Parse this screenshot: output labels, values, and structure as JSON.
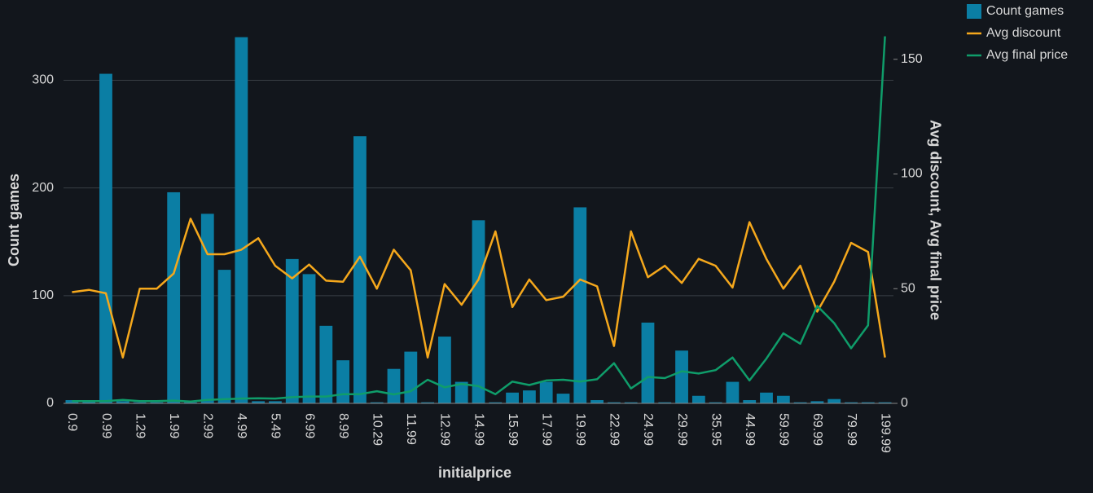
{
  "chart_data": {
    "type": "bar-line",
    "x_label": "initialprice",
    "y_label": "Count games",
    "y2_label": "Avg discount, Avg final price",
    "categories": [
      "0.9",
      null,
      "0.99",
      null,
      "1.29",
      null,
      "1.99",
      null,
      "2.99",
      null,
      "4.99",
      null,
      "5.49",
      null,
      "6.99",
      null,
      "8.99",
      null,
      "10.29",
      null,
      "11.99",
      null,
      "12.99",
      null,
      "14.99",
      null,
      "15.99",
      null,
      "17.99",
      null,
      "19.99",
      null,
      "22.99",
      null,
      "24.99",
      null,
      "29.99",
      null,
      "35.95",
      null,
      "44.99",
      null,
      "59.99",
      null,
      "69.99",
      null,
      "79.99",
      null,
      "199.99"
    ],
    "series": [
      {
        "name": "Count games",
        "type": "bar",
        "color": "#0b7ea4",
        "values": [
          3,
          2,
          306,
          2,
          1,
          1,
          196,
          1,
          176,
          124,
          340,
          2,
          2,
          134,
          120,
          72,
          40,
          248,
          1,
          32,
          48,
          1,
          62,
          20,
          170,
          1,
          10,
          12,
          20,
          9,
          182,
          3,
          1,
          1,
          75,
          1,
          49,
          7,
          1,
          20,
          3,
          10,
          7,
          1,
          2,
          4,
          1,
          1,
          1
        ]
      },
      {
        "name": "Avg discount",
        "type": "line",
        "axis": "y2",
        "color": "#f5a81c",
        "values": [
          48.5,
          49.5,
          48,
          20,
          50,
          50,
          56.6,
          80.5,
          65,
          65,
          67,
          72,
          60,
          54.5,
          60.5,
          53.5,
          53,
          64,
          50,
          67,
          58,
          20,
          52,
          43,
          54,
          75,
          42,
          54,
          45,
          46.5,
          54,
          51,
          25,
          75,
          55,
          60,
          52.5,
          63,
          60,
          50.5,
          79,
          63,
          50,
          60,
          40,
          53,
          70,
          66,
          20
        ]
      },
      {
        "name": "Avg final price",
        "type": "line",
        "axis": "y2",
        "color": "#0f9d6a",
        "values": [
          1,
          1,
          1,
          1.5,
          1,
          1,
          1.2,
          0.8,
          1.5,
          1.8,
          2.1,
          2.2,
          2.1,
          2.7,
          3,
          3,
          4,
          4,
          5.3,
          3.9,
          5.3,
          10.3,
          7,
          8.5,
          7.5,
          4,
          9.5,
          8,
          10,
          10.3,
          9.5,
          10.5,
          17.5,
          6.5,
          11.5,
          11,
          14,
          13,
          14.5,
          20,
          10,
          19.5,
          30.5,
          26,
          42.5,
          35,
          24,
          34,
          160
        ]
      }
    ],
    "ylim": [
      0,
      345
    ],
    "yticks": [
      0,
      100,
      200,
      300
    ],
    "y2lim": [
      0,
      162
    ],
    "y2ticks": [
      0,
      50,
      100,
      150
    ],
    "grid": true,
    "legend": "top-right"
  }
}
